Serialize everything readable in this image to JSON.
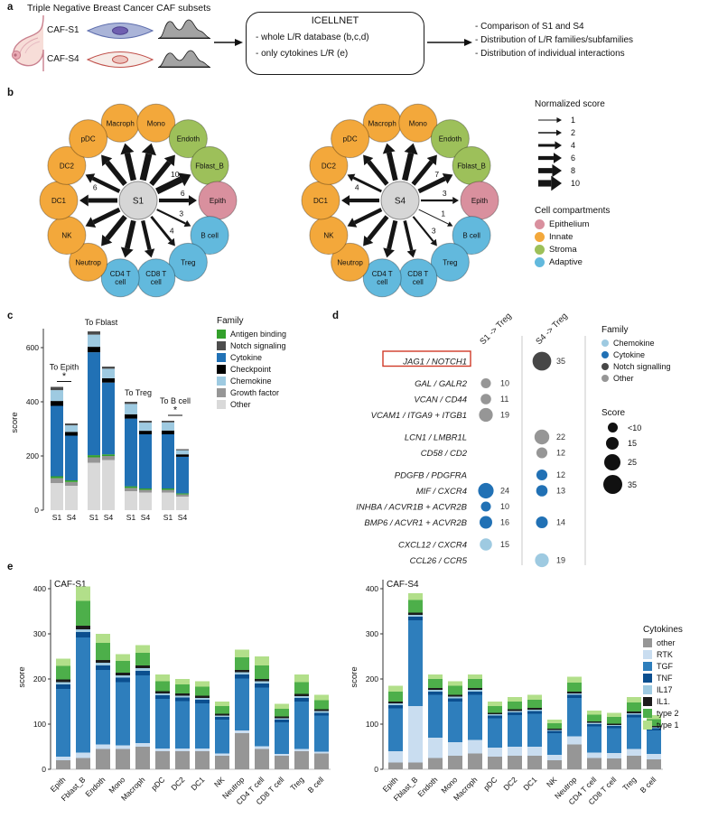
{
  "panel_a": {
    "label": "a",
    "title": "Triple Negative Breast Cancer CAF subsets",
    "subset_labels": [
      "CAF-S1",
      "CAF-S4"
    ],
    "box": {
      "title": "ICELLNET",
      "items": [
        "- whole L/R database (b,c,d)",
        "- only cytokines L/R (e)"
      ]
    },
    "outputs": [
      "- Comparison of S1 and S4",
      "- Distribution of L/R families/subfamilies",
      "- Distribution of individual interactions"
    ]
  },
  "panel_b": {
    "label": "b",
    "compartment_colors": {
      "Epithelium": "#d9909e",
      "Innate": "#f3a83b",
      "Stroma": "#9dc05a",
      "Adaptive": "#62b9dd"
    },
    "nodes": [
      {
        "name": "Macroph",
        "compartment": "Innate",
        "angle": -103
      },
      {
        "name": "Mono",
        "compartment": "Innate",
        "angle": -77
      },
      {
        "name": "Endoth",
        "compartment": "Stroma",
        "angle": -51
      },
      {
        "name": "Fblast_B",
        "compartment": "Stroma",
        "angle": -26
      },
      {
        "name": "Epith",
        "compartment": "Epithelium",
        "angle": 0
      },
      {
        "name": "B cell",
        "compartment": "Adaptive",
        "angle": 26
      },
      {
        "name": "Treg",
        "compartment": "Adaptive",
        "angle": 51
      },
      {
        "name": "CD8 T cell",
        "compartment": "Adaptive",
        "angle": 77
      },
      {
        "name": "CD4 T cell",
        "compartment": "Adaptive",
        "angle": 103
      },
      {
        "name": "Neutrop",
        "compartment": "Innate",
        "angle": 129
      },
      {
        "name": "NK",
        "compartment": "Innate",
        "angle": 154
      },
      {
        "name": "DC1",
        "compartment": "Innate",
        "angle": 180
      },
      {
        "name": "DC2",
        "compartment": "Innate",
        "angle": -154
      },
      {
        "name": "pDC",
        "compartment": "Innate",
        "angle": -129
      }
    ],
    "networks": [
      {
        "center": "S1",
        "scores": {
          "Macroph": 9,
          "Mono": 10,
          "Endoth": 8,
          "Fblast_B": 10,
          "Epith": 6,
          "B cell": 3,
          "Treg": 4,
          "CD8 T cell": 6,
          "CD4 T cell": 8,
          "Neutrop": 8,
          "NK": 7,
          "DC1": 7,
          "DC2": 6,
          "pDC": 8
        },
        "shown_labels": {
          "DC2": "6",
          "Fblast_B": "10",
          "Epith": "6",
          "B cell": "3",
          "Treg": "4"
        }
      },
      {
        "center": "S4",
        "scores": {
          "Macroph": 8,
          "Mono": 9,
          "Endoth": 7,
          "Fblast_B": 7,
          "Epith": 3,
          "B cell": 1,
          "Treg": 3,
          "CD8 T cell": 5,
          "CD4 T cell": 7,
          "Neutrop": 7,
          "NK": 6,
          "DC1": 6,
          "DC2": 4,
          "pDC": 7
        },
        "shown_labels": {
          "DC2": "4",
          "Fblast_B": "7",
          "Epith": "3",
          "B cell": "1",
          "Treg": "3"
        }
      }
    ],
    "score_legend": {
      "title": "Normalized score",
      "values": [
        1,
        2,
        4,
        6,
        8,
        10
      ]
    },
    "compartment_legend": {
      "title": "Cell compartments",
      "items": [
        "Epithelium",
        "Innate",
        "Stroma",
        "Adaptive"
      ]
    }
  },
  "chart_data": [
    {
      "id": "panel_c",
      "panel_label": "c",
      "type": "bar",
      "stacked": true,
      "ylabel": "score",
      "yticks": [
        0,
        200,
        400,
        600
      ],
      "ylim": [
        0,
        680
      ],
      "bar_labels": [
        "S1",
        "S4"
      ],
      "stack_order_bottom_to_top": [
        "Other",
        "Growth factor",
        "Antigen binding",
        "Cytokine",
        "Checkpoint",
        "Chemokine",
        "Notch signaling"
      ],
      "family_colors": {
        "Antigen binding": "#33a02c",
        "Notch signaling": "#4d4d4d",
        "Cytokine": "#2171b5",
        "Checkpoint": "#000000",
        "Chemokine": "#9ecae1",
        "Growth factor": "#969696",
        "Other": "#d9d9d9"
      },
      "groups": [
        {
          "label": "To Epith",
          "significant": true,
          "values": {
            "S1": [
              100,
              18,
              7,
              260,
              18,
              40,
              12
            ],
            "S4": [
              90,
              14,
              6,
              165,
              14,
              24,
              7
            ]
          }
        },
        {
          "label": "To Fblast",
          "significant": false,
          "values": {
            "S1": [
              175,
              20,
              8,
              380,
              20,
              45,
              12
            ],
            "S4": [
              185,
              15,
              6,
              265,
              16,
              35,
              8
            ]
          }
        },
        {
          "label": "To Treg",
          "significant": false,
          "values": {
            "S1": [
              70,
              12,
              6,
              250,
              16,
              38,
              8
            ],
            "S4": [
              65,
              10,
              5,
              200,
              13,
              30,
              7
            ]
          }
        },
        {
          "label": "To B cell",
          "significant": true,
          "values": {
            "S1": [
              65,
              10,
              5,
              200,
              14,
              30,
              6
            ],
            "S4": [
              50,
              8,
              4,
              135,
              9,
              15,
              4
            ]
          }
        }
      ],
      "legend": {
        "title": "Family",
        "items": [
          "Antigen binding",
          "Notch signaling",
          "Cytokine",
          "Checkpoint",
          "Chemokine",
          "Growth factor",
          "Other"
        ]
      }
    },
    {
      "id": "panel_d",
      "panel_label": "d",
      "type": "dot",
      "columns": [
        "S1 -> Treg",
        "S4 -> Treg"
      ],
      "family_colors": {
        "Chemokine": "#9ecae1",
        "Cytokine": "#2171b5",
        "Notch signalling": "#474747",
        "Other": "#969696"
      },
      "rows": [
        {
          "pair": "JAG1 / NOTCH1",
          "family": "Notch signalling",
          "s1": null,
          "s4": 35,
          "highlighted": true,
          "group": 1
        },
        {
          "pair": "GAL / GALR2",
          "family": "Other",
          "s1": 10,
          "s4": null,
          "group": 2
        },
        {
          "pair": "VCAN / CD44",
          "family": "Other",
          "s1": 11,
          "s4": null,
          "group": 2
        },
        {
          "pair": "VCAM1 / ITGA9 + ITGB1",
          "family": "Other",
          "s1": 19,
          "s4": null,
          "group": 2
        },
        {
          "pair": "LCN1 / LMBR1L",
          "family": "Other",
          "s1": null,
          "s4": 22,
          "group": 3
        },
        {
          "pair": "CD58 / CD2",
          "family": "Other",
          "s1": null,
          "s4": 12,
          "group": 3
        },
        {
          "pair": "PDGFB / PDGFRA",
          "family": "Cytokine",
          "s1": null,
          "s4": 12,
          "group": 4
        },
        {
          "pair": "MIF / CXCR4",
          "family": "Cytokine",
          "s1": 24,
          "s4": 13,
          "group": 4
        },
        {
          "pair": "INHBA / ACVR1B + ACVR2B",
          "family": "Cytokine",
          "s1": 10,
          "s4": null,
          "group": 4
        },
        {
          "pair": "BMP6 / ACVR1 + ACVR2B",
          "family": "Cytokine",
          "s1": 16,
          "s4": 14,
          "group": 4
        },
        {
          "pair": "CXCL12 / CXCR4",
          "family": "Chemokine",
          "s1": 15,
          "s4": null,
          "group": 5
        },
        {
          "pair": "CCL26 / CCR5",
          "family": "Chemokine",
          "s1": null,
          "s4": 19,
          "group": 5
        }
      ],
      "legend_family": {
        "title": "Family",
        "items": [
          "Chemokine",
          "Cytokine",
          "Notch signalling",
          "Other"
        ]
      },
      "legend_score": {
        "title": "Score",
        "items": [
          "<10",
          "15",
          "25",
          "35"
        ],
        "sizes": [
          9,
          15,
          25,
          35
        ]
      }
    },
    {
      "id": "panel_e",
      "panel_label": "e",
      "type": "bar",
      "stacked": true,
      "ylabel": "score",
      "yticks": [
        0,
        100,
        200,
        300,
        400
      ],
      "ylim": [
        0,
        420
      ],
      "categories": [
        "Epith",
        "Fblast_B",
        "Endoth",
        "Mono",
        "Macroph",
        "pDC",
        "DC2",
        "DC1",
        "NK",
        "Neutrop",
        "CD4 T cell",
        "CD8 T cell",
        "Treg",
        "B cell"
      ],
      "stack_order_bottom_to_top": [
        "other",
        "RTK",
        "TGF",
        "TNF",
        "IL17",
        "IL1.",
        "type 2",
        "type 1"
      ],
      "cytokine_colors": {
        "other": "#969696",
        "RTK": "#c9ddf0",
        "TGF": "#2e7ebc",
        "TNF": "#0b4f8f",
        "IL17": "#9ecae1",
        "IL1.": "#1c1c1c",
        "type 2": "#4daf4a",
        "type 1": "#b2df8a"
      },
      "charts": [
        {
          "title": "CAF-S1",
          "series": {
            "other": [
              20,
              25,
              45,
              45,
              50,
              40,
              40,
              40,
              30,
              80,
              45,
              30,
              40,
              35
            ],
            "RTK": [
              8,
              12,
              10,
              8,
              8,
              6,
              6,
              6,
              5,
              6,
              6,
              4,
              5,
              4
            ],
            "TGF": [
              150,
              255,
              165,
              140,
              150,
              110,
              105,
              100,
              75,
              115,
              130,
              70,
              105,
              80
            ],
            "TNF": [
              10,
              12,
              10,
              10,
              10,
              8,
              8,
              8,
              6,
              9,
              9,
              6,
              8,
              6
            ],
            "IL17": [
              5,
              6,
              6,
              5,
              6,
              4,
              4,
              4,
              3,
              5,
              5,
              3,
              4,
              4
            ],
            "IL1.": [
              6,
              8,
              6,
              6,
              6,
              5,
              5,
              5,
              4,
              5,
              5,
              4,
              5,
              4
            ],
            "type 2": [
              30,
              55,
              38,
              26,
              28,
              22,
              20,
              20,
              17,
              28,
              30,
              17,
              26,
              20
            ],
            "type 1": [
              16,
              32,
              20,
              15,
              17,
              15,
              12,
              12,
              10,
              17,
              20,
              11,
              17,
              12
            ]
          }
        },
        {
          "title": "CAF-S4",
          "series": {
            "other": [
              15,
              15,
              25,
              30,
              35,
              28,
              30,
              30,
              20,
              55,
              25,
              24,
              30,
              22
            ],
            "RTK": [
              25,
              125,
              45,
              30,
              30,
              20,
              20,
              20,
              12,
              18,
              12,
              12,
              15,
              12
            ],
            "TGF": [
              95,
              190,
              95,
              90,
              100,
              65,
              70,
              73,
              48,
              85,
              58,
              55,
              70,
              52
            ],
            "TNF": [
              7,
              8,
              7,
              7,
              7,
              6,
              6,
              6,
              5,
              7,
              5,
              5,
              6,
              5
            ],
            "IL17": [
              4,
              4,
              4,
              4,
              4,
              3,
              3,
              3,
              2,
              3,
              3,
              2,
              3,
              2
            ],
            "IL1.": [
              4,
              5,
              4,
              4,
              4,
              3,
              4,
              4,
              3,
              4,
              3,
              3,
              4,
              3
            ],
            "type 2": [
              22,
              28,
              20,
              20,
              20,
              15,
              17,
              18,
              12,
              20,
              15,
              15,
              20,
              15
            ],
            "type 1": [
              13,
              15,
              10,
              10,
              10,
              10,
              10,
              11,
              8,
              13,
              9,
              9,
              12,
              9
            ]
          }
        }
      ],
      "legend": {
        "title": "Cytokines",
        "items": [
          "other",
          "RTK",
          "TGF",
          "TNF",
          "IL17",
          "IL1.",
          "type 2",
          "type 1"
        ]
      }
    }
  ]
}
